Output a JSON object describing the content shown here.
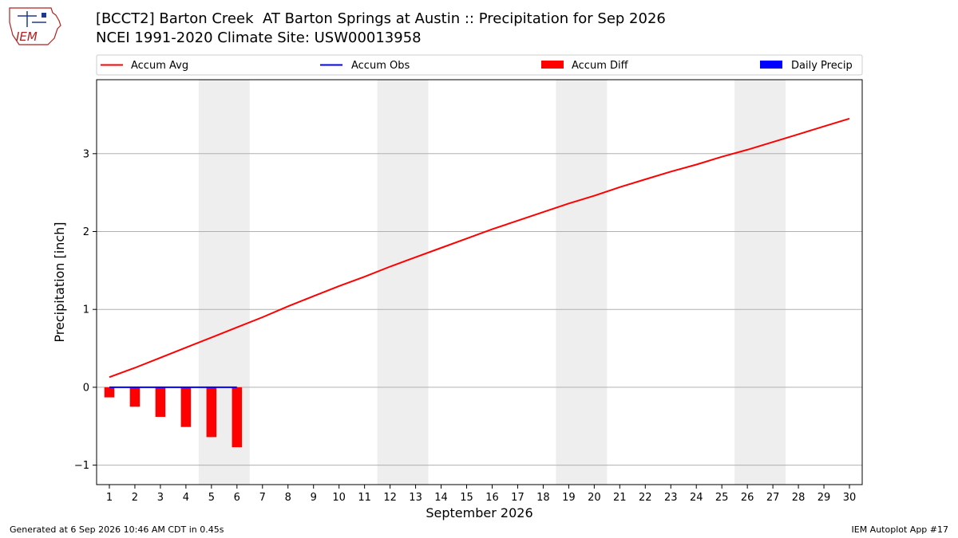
{
  "title": "[BCCT2] Barton Creek  AT Barton Springs at Austin :: Precipitation for Sep 2026",
  "subtitle": "NCEI 1991-2020 Climate Site: USW00013958",
  "logo_text": "IEM",
  "footer_left": "Generated at 6 Sep 2026 10:46 AM CDT in 0.45s",
  "footer_right": "IEM Autoplot App #17",
  "colors": {
    "avg": "#ff0000",
    "obs": "#0000ff",
    "diff": "#ff0000",
    "daily": "#0000ff",
    "weekend": "#eeeeee",
    "grid": "#b0b0b0"
  },
  "chart_data": {
    "type": "bar",
    "xlabel": "September 2026",
    "ylabel": "Precipitation [inch]",
    "xlim": [
      0.5,
      30.5
    ],
    "ylim": [
      -1.25,
      3.95
    ],
    "yticks": [
      -1,
      0,
      1,
      2,
      3
    ],
    "ytick_labels": [
      "−1",
      "0",
      "1",
      "2",
      "3"
    ],
    "x": [
      1,
      2,
      3,
      4,
      5,
      6,
      7,
      8,
      9,
      10,
      11,
      12,
      13,
      14,
      15,
      16,
      17,
      18,
      19,
      20,
      21,
      22,
      23,
      24,
      25,
      26,
      27,
      28,
      29,
      30
    ],
    "xtick_labels": [
      "1",
      "2",
      "3",
      "4",
      "5",
      "6",
      "7",
      "8",
      "9",
      "10",
      "11",
      "12",
      "13",
      "14",
      "15",
      "16",
      "17",
      "18",
      "19",
      "20",
      "21",
      "22",
      "23",
      "24",
      "25",
      "26",
      "27",
      "28",
      "29",
      "30"
    ],
    "weekends": [
      [
        4.5,
        6.5
      ],
      [
        11.5,
        13.5
      ],
      [
        18.5,
        20.5
      ],
      [
        25.5,
        27.5
      ]
    ],
    "legend_location": "top",
    "grid": "y-major",
    "series": [
      {
        "name": "Accum Avg",
        "kind": "line",
        "x": [
          1,
          2,
          3,
          4,
          5,
          6,
          7,
          8,
          9,
          10,
          11,
          12,
          13,
          14,
          15,
          16,
          17,
          18,
          19,
          20,
          21,
          22,
          23,
          24,
          25,
          26,
          27,
          28,
          29,
          30
        ],
        "values": [
          0.13,
          0.25,
          0.38,
          0.51,
          0.64,
          0.77,
          0.9,
          1.04,
          1.17,
          1.3,
          1.42,
          1.55,
          1.67,
          1.79,
          1.91,
          2.03,
          2.14,
          2.25,
          2.36,
          2.46,
          2.57,
          2.67,
          2.77,
          2.86,
          2.96,
          3.05,
          3.15,
          3.25,
          3.35,
          3.45
        ]
      },
      {
        "name": "Accum Obs",
        "kind": "line",
        "x": [
          1,
          2,
          3,
          4,
          5,
          6
        ],
        "values": [
          0,
          0,
          0,
          0,
          0,
          0
        ]
      },
      {
        "name": "Accum Diff",
        "kind": "bar",
        "x": [
          1,
          2,
          3,
          4,
          5,
          6
        ],
        "values": [
          -0.13,
          -0.25,
          -0.38,
          -0.51,
          -0.64,
          -0.77
        ]
      },
      {
        "name": "Daily Precip",
        "kind": "bar",
        "x": [
          1,
          2,
          3,
          4,
          5,
          6
        ],
        "values": [
          0,
          0,
          0,
          0,
          0,
          0
        ]
      }
    ]
  }
}
